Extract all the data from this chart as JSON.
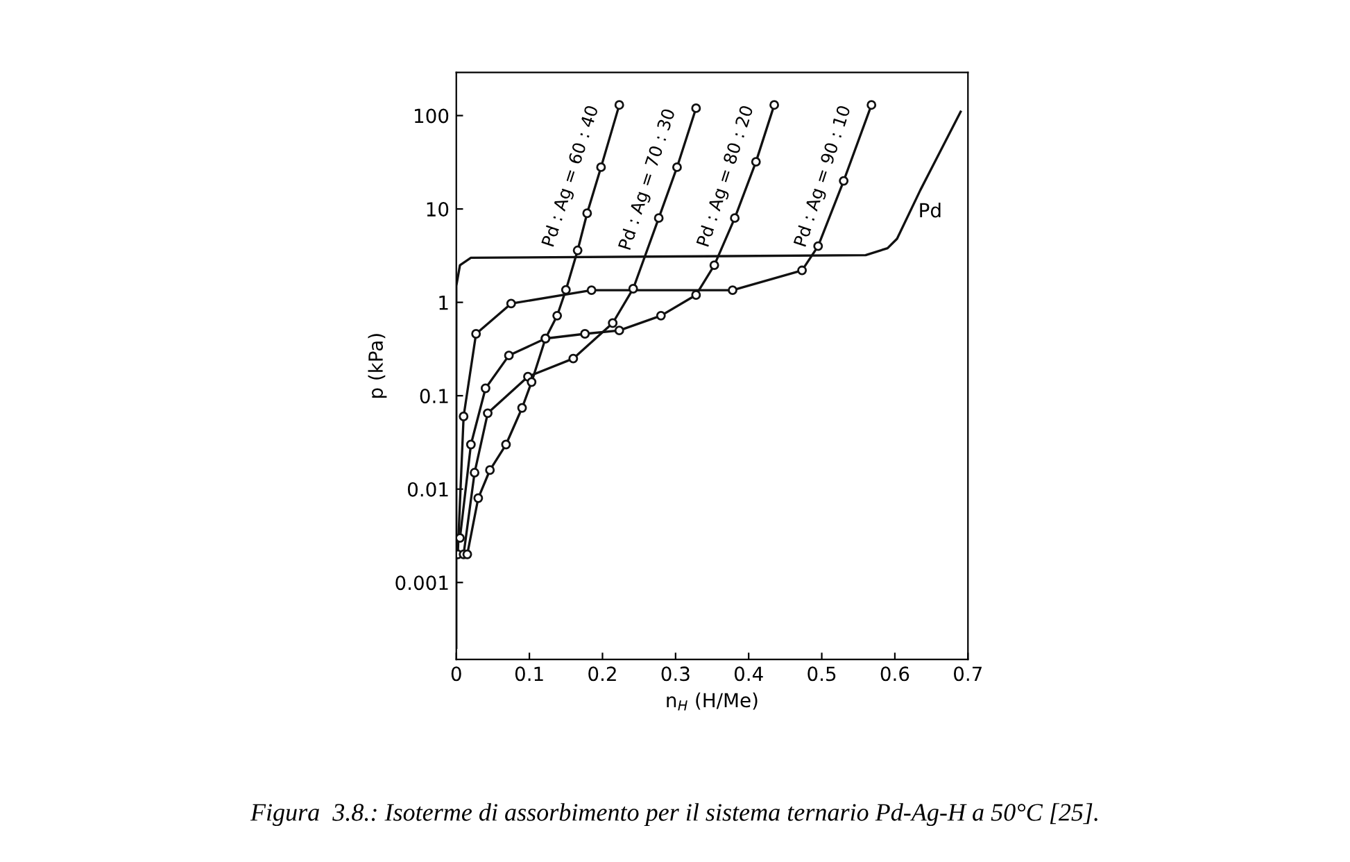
{
  "chart_data": {
    "type": "line",
    "xlabel": "n$_{H}$ (H/Me)",
    "ylabel": "p (kPa)",
    "log": "y",
    "xlim": [
      0,
      0.7
    ],
    "ylim": [
      0.00015,
      290
    ],
    "xticks": [
      0,
      0.1,
      0.2,
      0.3,
      0.4,
      0.5,
      0.6,
      0.7
    ],
    "yticks": [
      0.001,
      0.01,
      0.1,
      1,
      10,
      100
    ],
    "grid": false,
    "legend": false,
    "series": [
      {
        "name": "Pd",
        "color": "#111111",
        "marker": "none",
        "x": [
          0,
          0,
          0.005,
          0.02,
          0.3,
          0.56,
          0.59,
          0.603,
          0.635,
          0.69
        ],
        "values": [
          0.0002,
          1.5,
          2.5,
          3.0,
          3.1,
          3.2,
          3.8,
          4.8,
          16,
          110
        ]
      },
      {
        "name": "Pd : Ag = 90 : 10",
        "color": "#111111",
        "marker": "circle",
        "x": [
          0.002,
          0.01,
          0.027,
          0.075,
          0.185,
          0.378,
          0.473,
          0.495,
          0.53,
          0.568
        ],
        "values": [
          0.002,
          0.06,
          0.46,
          0.97,
          1.35,
          1.35,
          2.2,
          4.0,
          20,
          130
        ]
      },
      {
        "name": "Pd : Ag = 80 : 20",
        "color": "#111111",
        "marker": "circle",
        "x": [
          0.005,
          0.02,
          0.04,
          0.072,
          0.122,
          0.176,
          0.223,
          0.28,
          0.328,
          0.353,
          0.381,
          0.41,
          0.435
        ],
        "values": [
          0.003,
          0.03,
          0.12,
          0.27,
          0.41,
          0.46,
          0.5,
          0.72,
          1.2,
          2.5,
          8,
          32,
          130
        ]
      },
      {
        "name": "Pd : Ag = 70 : 30",
        "color": "#111111",
        "marker": "circle",
        "x": [
          0.01,
          0.025,
          0.043,
          0.098,
          0.16,
          0.214,
          0.242,
          0.277,
          0.302,
          0.328
        ],
        "values": [
          0.002,
          0.015,
          0.065,
          0.16,
          0.25,
          0.6,
          1.4,
          8,
          28,
          120
        ]
      },
      {
        "name": "Pd : Ag = 60 : 40",
        "color": "#111111",
        "marker": "circle",
        "x": [
          0.015,
          0.03,
          0.046,
          0.068,
          0.09,
          0.103,
          0.122,
          0.138,
          0.15,
          0.166,
          0.179,
          0.198,
          0.223
        ],
        "values": [
          0.002,
          0.008,
          0.016,
          0.03,
          0.074,
          0.14,
          0.41,
          0.72,
          1.36,
          3.6,
          9,
          28,
          130
        ]
      }
    ],
    "annotations": [
      "Figura  3.8.: Isoterme di assorbimento per il sistema ternario Pd-Ag-H a 50°C [25]."
    ]
  }
}
